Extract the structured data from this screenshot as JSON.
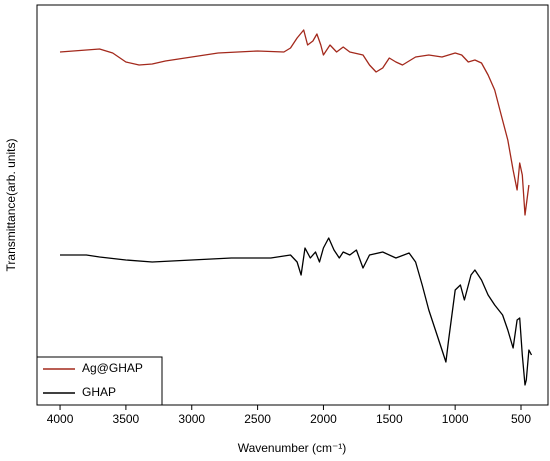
{
  "chart_data": {
    "type": "line",
    "xlabel": "Wavenumber (cm⁻¹)",
    "ylabel": "Transmittance(arb. units)",
    "xlim": [
      4175,
      295
    ],
    "ylim": [
      0,
      100
    ],
    "xticks": [
      4000,
      3500,
      3000,
      2500,
      2000,
      1500,
      1000,
      500
    ],
    "legend": "lower left",
    "series": [
      {
        "name": "Ag@GHAP",
        "color": "#a3291c",
        "x": [
          4000,
          3800,
          3700,
          3600,
          3500,
          3400,
          3300,
          3200,
          3000,
          2800,
          2500,
          2300,
          2250,
          2200,
          2150,
          2120,
          2080,
          2050,
          2020,
          2000,
          1950,
          1900,
          1850,
          1800,
          1700,
          1650,
          1600,
          1550,
          1500,
          1450,
          1400,
          1300,
          1200,
          1100,
          1000,
          950,
          900,
          850,
          800,
          750,
          700,
          650,
          600,
          560,
          530,
          510,
          490,
          470,
          450,
          440
        ],
        "values": [
          88.25,
          88.75,
          89,
          88,
          85.75,
          85,
          85.25,
          86,
          87,
          88,
          88.5,
          88.25,
          89.25,
          91.75,
          93.75,
          90,
          91,
          92.75,
          90,
          87.5,
          90,
          88.25,
          89.5,
          88.25,
          87.5,
          85,
          83.25,
          84.25,
          86.75,
          85.75,
          85,
          87,
          87.5,
          87,
          88,
          87.5,
          85.75,
          86.25,
          85.5,
          82.5,
          78.75,
          72.5,
          66.25,
          58.75,
          53.75,
          60.5,
          57.5,
          47.5,
          52.5,
          55
        ]
      },
      {
        "name": "GHAP",
        "color": "#000000",
        "x": [
          4000,
          3800,
          3700,
          3500,
          3300,
          3000,
          2700,
          2400,
          2250,
          2200,
          2170,
          2140,
          2100,
          2060,
          2030,
          2000,
          1960,
          1920,
          1880,
          1850,
          1800,
          1750,
          1700,
          1650,
          1550,
          1450,
          1350,
          1300,
          1250,
          1200,
          1150,
          1100,
          1070,
          1050,
          1000,
          960,
          930,
          880,
          850,
          800,
          750,
          700,
          640,
          600,
          560,
          530,
          510,
          490,
          470,
          460,
          440,
          420
        ],
        "values": [
          37.5,
          37.5,
          37,
          36.25,
          35.75,
          36.25,
          36.75,
          36.75,
          37.5,
          35.75,
          32.5,
          39.25,
          36.75,
          38.25,
          35.75,
          39.25,
          41.75,
          38.75,
          36.75,
          38.25,
          37.5,
          38.75,
          34.25,
          37.5,
          38.25,
          36.75,
          38,
          35.75,
          30,
          23.75,
          18.75,
          13.75,
          10.75,
          16.25,
          28.75,
          30,
          26.25,
          32.5,
          33.75,
          31.25,
          27.5,
          25,
          22.5,
          18.75,
          14.25,
          21.25,
          21.75,
          12.5,
          5,
          6.25,
          13.75,
          12.5
        ]
      }
    ]
  }
}
